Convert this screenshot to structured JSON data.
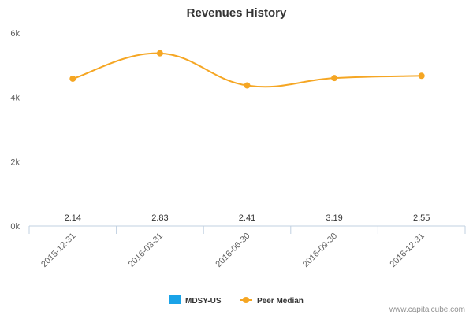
{
  "chart_data": {
    "type": "line",
    "title": "Revenues History",
    "categories": [
      "2015-12-31",
      "2016-03-31",
      "2016-06-30",
      "2016-09-30",
      "2016-12-31"
    ],
    "y_ticks": [
      "0k",
      "2k",
      "4k",
      "6k"
    ],
    "ylim": [
      0,
      6000
    ],
    "grid": false,
    "legend_position": "bottom-center",
    "series": [
      {
        "name": "MDSY-US",
        "kind": "bar",
        "color": "#1aa3e8",
        "values": [
          2.14,
          2.83,
          2.41,
          3.19,
          2.55
        ],
        "data_labels": [
          "2.14",
          "2.83",
          "2.41",
          "3.19",
          "2.55"
        ]
      },
      {
        "name": "Peer Median",
        "kind": "line",
        "color": "#f5a623",
        "values": [
          4580,
          5370,
          4370,
          4600,
          4670
        ]
      }
    ]
  },
  "credit": "www.capitalcube.com"
}
